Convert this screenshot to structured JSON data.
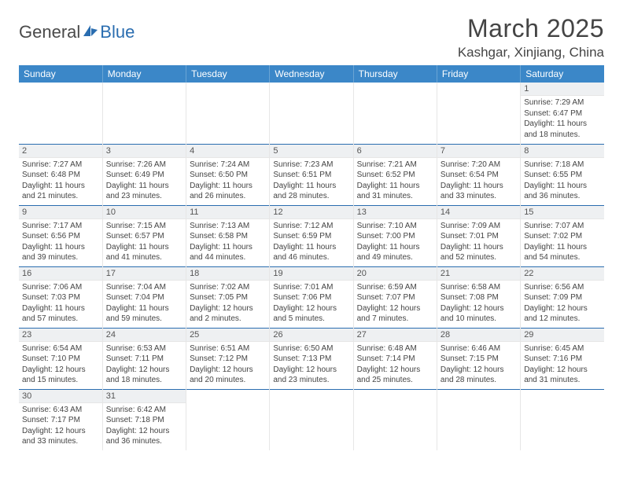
{
  "logo": {
    "text_general": "General",
    "text_blue": "Blue"
  },
  "title": "March 2025",
  "location": "Kashgar, Xinjiang, China",
  "colors": {
    "header_bg": "#3b87c8",
    "header_text": "#ffffff",
    "row_border": "#2a6db0",
    "daynum_bg": "#eef0f2",
    "logo_blue": "#2a6db0"
  },
  "columns": [
    "Sunday",
    "Monday",
    "Tuesday",
    "Wednesday",
    "Thursday",
    "Friday",
    "Saturday"
  ],
  "weeks": [
    [
      null,
      null,
      null,
      null,
      null,
      null,
      {
        "n": "1",
        "sunrise": "7:29 AM",
        "sunset": "6:47 PM",
        "daylight": "11 hours and 18 minutes."
      }
    ],
    [
      {
        "n": "2",
        "sunrise": "7:27 AM",
        "sunset": "6:48 PM",
        "daylight": "11 hours and 21 minutes."
      },
      {
        "n": "3",
        "sunrise": "7:26 AM",
        "sunset": "6:49 PM",
        "daylight": "11 hours and 23 minutes."
      },
      {
        "n": "4",
        "sunrise": "7:24 AM",
        "sunset": "6:50 PM",
        "daylight": "11 hours and 26 minutes."
      },
      {
        "n": "5",
        "sunrise": "7:23 AM",
        "sunset": "6:51 PM",
        "daylight": "11 hours and 28 minutes."
      },
      {
        "n": "6",
        "sunrise": "7:21 AM",
        "sunset": "6:52 PM",
        "daylight": "11 hours and 31 minutes."
      },
      {
        "n": "7",
        "sunrise": "7:20 AM",
        "sunset": "6:54 PM",
        "daylight": "11 hours and 33 minutes."
      },
      {
        "n": "8",
        "sunrise": "7:18 AM",
        "sunset": "6:55 PM",
        "daylight": "11 hours and 36 minutes."
      }
    ],
    [
      {
        "n": "9",
        "sunrise": "7:17 AM",
        "sunset": "6:56 PM",
        "daylight": "11 hours and 39 minutes."
      },
      {
        "n": "10",
        "sunrise": "7:15 AM",
        "sunset": "6:57 PM",
        "daylight": "11 hours and 41 minutes."
      },
      {
        "n": "11",
        "sunrise": "7:13 AM",
        "sunset": "6:58 PM",
        "daylight": "11 hours and 44 minutes."
      },
      {
        "n": "12",
        "sunrise": "7:12 AM",
        "sunset": "6:59 PM",
        "daylight": "11 hours and 46 minutes."
      },
      {
        "n": "13",
        "sunrise": "7:10 AM",
        "sunset": "7:00 PM",
        "daylight": "11 hours and 49 minutes."
      },
      {
        "n": "14",
        "sunrise": "7:09 AM",
        "sunset": "7:01 PM",
        "daylight": "11 hours and 52 minutes."
      },
      {
        "n": "15",
        "sunrise": "7:07 AM",
        "sunset": "7:02 PM",
        "daylight": "11 hours and 54 minutes."
      }
    ],
    [
      {
        "n": "16",
        "sunrise": "7:06 AM",
        "sunset": "7:03 PM",
        "daylight": "11 hours and 57 minutes."
      },
      {
        "n": "17",
        "sunrise": "7:04 AM",
        "sunset": "7:04 PM",
        "daylight": "11 hours and 59 minutes."
      },
      {
        "n": "18",
        "sunrise": "7:02 AM",
        "sunset": "7:05 PM",
        "daylight": "12 hours and 2 minutes."
      },
      {
        "n": "19",
        "sunrise": "7:01 AM",
        "sunset": "7:06 PM",
        "daylight": "12 hours and 5 minutes."
      },
      {
        "n": "20",
        "sunrise": "6:59 AM",
        "sunset": "7:07 PM",
        "daylight": "12 hours and 7 minutes."
      },
      {
        "n": "21",
        "sunrise": "6:58 AM",
        "sunset": "7:08 PM",
        "daylight": "12 hours and 10 minutes."
      },
      {
        "n": "22",
        "sunrise": "6:56 AM",
        "sunset": "7:09 PM",
        "daylight": "12 hours and 12 minutes."
      }
    ],
    [
      {
        "n": "23",
        "sunrise": "6:54 AM",
        "sunset": "7:10 PM",
        "daylight": "12 hours and 15 minutes."
      },
      {
        "n": "24",
        "sunrise": "6:53 AM",
        "sunset": "7:11 PM",
        "daylight": "12 hours and 18 minutes."
      },
      {
        "n": "25",
        "sunrise": "6:51 AM",
        "sunset": "7:12 PM",
        "daylight": "12 hours and 20 minutes."
      },
      {
        "n": "26",
        "sunrise": "6:50 AM",
        "sunset": "7:13 PM",
        "daylight": "12 hours and 23 minutes."
      },
      {
        "n": "27",
        "sunrise": "6:48 AM",
        "sunset": "7:14 PM",
        "daylight": "12 hours and 25 minutes."
      },
      {
        "n": "28",
        "sunrise": "6:46 AM",
        "sunset": "7:15 PM",
        "daylight": "12 hours and 28 minutes."
      },
      {
        "n": "29",
        "sunrise": "6:45 AM",
        "sunset": "7:16 PM",
        "daylight": "12 hours and 31 minutes."
      }
    ],
    [
      {
        "n": "30",
        "sunrise": "6:43 AM",
        "sunset": "7:17 PM",
        "daylight": "12 hours and 33 minutes."
      },
      {
        "n": "31",
        "sunrise": "6:42 AM",
        "sunset": "7:18 PM",
        "daylight": "12 hours and 36 minutes."
      },
      null,
      null,
      null,
      null,
      null
    ]
  ],
  "labels": {
    "sunrise": "Sunrise:",
    "sunset": "Sunset:",
    "daylight": "Daylight:"
  }
}
